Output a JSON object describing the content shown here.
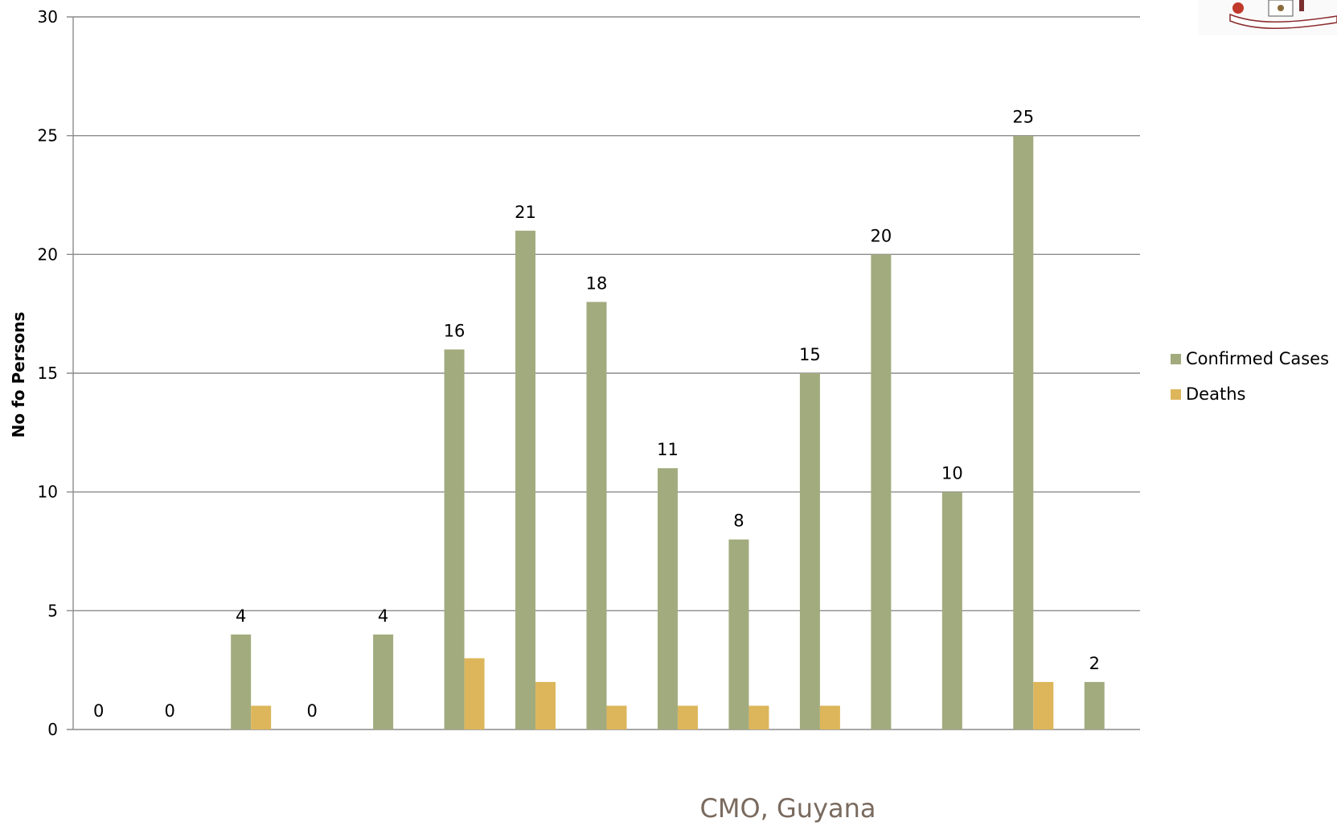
{
  "chart_data": {
    "type": "bar",
    "title": "",
    "xlabel": "",
    "ylabel": "No fo Persons",
    "ylim": [
      0,
      30
    ],
    "yticks": [
      0,
      5,
      10,
      15,
      20,
      25,
      30
    ],
    "grid": true,
    "legend_position": "right",
    "categories": [
      "",
      "",
      "",
      "",
      "",
      "",
      "",
      "",
      "",
      "",
      "",
      "",
      "",
      "",
      ""
    ],
    "series": [
      {
        "name": "Confirmed Cases",
        "color": "#A2AB7E",
        "values": [
          0,
          0,
          4,
          0,
          4,
          16,
          21,
          18,
          11,
          8,
          15,
          20,
          10,
          25,
          2
        ],
        "labels": [
          "0",
          "0",
          "4",
          "0",
          "4",
          "16",
          "21",
          "18",
          "11",
          "8",
          "15",
          "20",
          "10",
          "25",
          "2"
        ]
      },
      {
        "name": "Deaths",
        "color": "#DDB65B",
        "values": [
          0,
          0,
          1,
          0,
          0,
          3,
          2,
          1,
          1,
          1,
          1,
          0,
          0,
          2,
          0
        ]
      }
    ]
  },
  "footer": {
    "text": "CMO, Guyana",
    "color": "#7A6A5E"
  },
  "seal_icon": "coat-of-arms-seal"
}
